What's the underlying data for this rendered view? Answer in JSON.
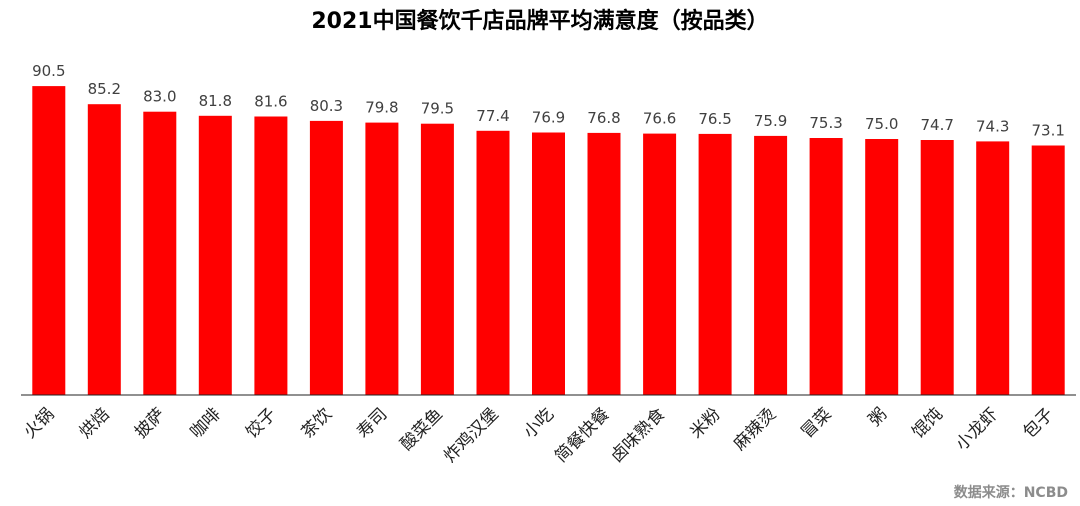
{
  "chart_data": {
    "type": "bar",
    "title": "2021中国餐饮千店品牌平均满意度（按品类）",
    "categories": [
      "火锅",
      "烘焙",
      "披萨",
      "咖啡",
      "饺子",
      "茶饮",
      "寿司",
      "酸菜鱼",
      "炸鸡汉堡",
      "小吃",
      "简餐快餐",
      "卤味熟食",
      "米粉",
      "麻辣烫",
      "冒菜",
      "粥",
      "馄饨",
      "小龙虾",
      "包子"
    ],
    "values": [
      90.5,
      85.2,
      83.0,
      81.8,
      81.6,
      80.3,
      79.8,
      79.5,
      77.4,
      76.9,
      76.8,
      76.6,
      76.5,
      75.9,
      75.3,
      75.0,
      74.7,
      74.3,
      73.1
    ],
    "value_labels": [
      "90.5",
      "85.2",
      "83.0",
      "81.8",
      "81.6",
      "80.3",
      "79.8",
      "79.5",
      "77.4",
      "76.9",
      "76.8",
      "76.6",
      "76.5",
      "75.9",
      "75.3",
      "75.0",
      "74.7",
      "74.3",
      "73.1"
    ],
    "ylim": [
      0,
      92
    ],
    "bar_color": "#ff0000",
    "axis_color": "#222222",
    "grid": false,
    "legend": "none",
    "source": "数据来源：NCBD"
  }
}
